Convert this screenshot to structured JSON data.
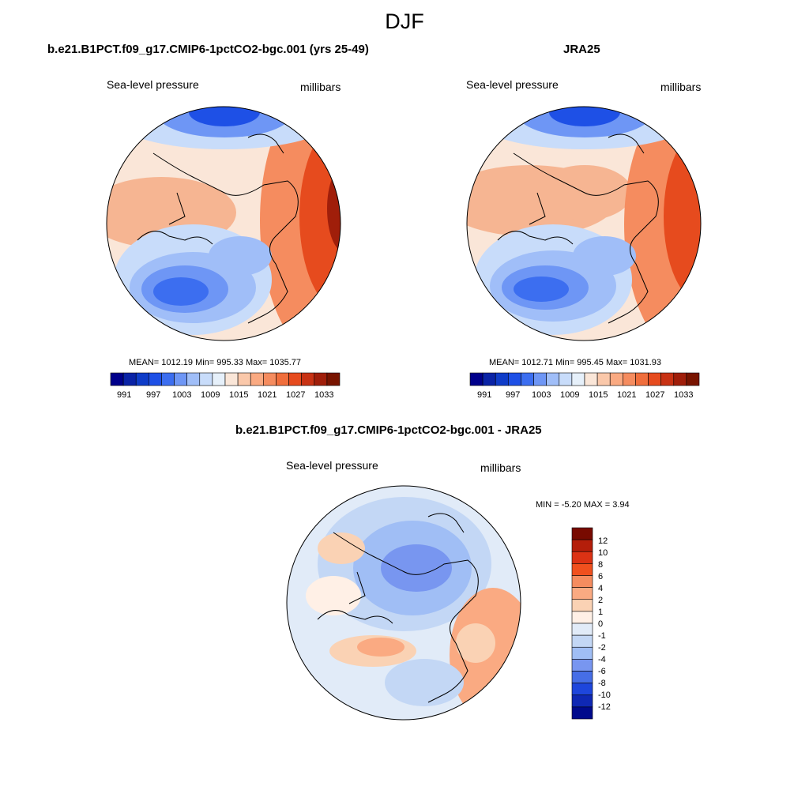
{
  "season": "DJF",
  "panels": [
    {
      "title": "b.e21.B1PCT.f09_g17.CMIP6-1pctCO2-bgc.001 (yrs 25-49)",
      "variable": "Sea-level pressure",
      "units": "millibars",
      "stats": "MEAN= 1012.19  Min= 995.33  Max= 1035.77",
      "mean": 1012.19,
      "min": 995.33,
      "max": 1035.77
    },
    {
      "title": "JRA25",
      "variable": "Sea-level pressure",
      "units": "millibars",
      "stats": "MEAN= 1012.71  Min= 995.45  Max= 1031.93",
      "mean": 1012.71,
      "min": 995.45,
      "max": 1031.93
    }
  ],
  "diff_panel": {
    "title": "b.e21.B1PCT.f09_g17.CMIP6-1pctCO2-bgc.001 - JRA25",
    "variable": "Sea-level pressure",
    "units": "millibars",
    "stats": "MIN =  -5.20 MAX =   3.94",
    "min": -5.2,
    "max": 3.94
  },
  "field_colorbar": {
    "labels": [
      "991",
      "997",
      "1003",
      "1009",
      "1015",
      "1021",
      "1027",
      "1033"
    ],
    "colors": [
      "#00008b",
      "#0a23a6",
      "#0f3cc8",
      "#1e50e6",
      "#3c6ef0",
      "#6e96f5",
      "#a0bef8",
      "#c8dcfa",
      "#e6f0fa",
      "#fae6d8",
      "#fac8aa",
      "#faaa82",
      "#f58c5f",
      "#f06e3c",
      "#e64b1e",
      "#c83214",
      "#a01e0a",
      "#781400"
    ]
  },
  "diff_colorbar": {
    "labels": [
      "12",
      "10",
      "8",
      "6",
      "4",
      "2",
      "1",
      "0",
      "-1",
      "-2",
      "-4",
      "-6",
      "-8",
      "-10",
      "-12"
    ],
    "colors": [
      "#780a00",
      "#b41e0a",
      "#dc3214",
      "#f0501e",
      "#f58c5f",
      "#faaa82",
      "#fad2b4",
      "#fff0e6",
      "#e1ebf8",
      "#c3d7f5",
      "#a0bef5",
      "#7896f0",
      "#466ee6",
      "#1e46dc",
      "#0f28b4",
      "#000a8c"
    ]
  }
}
